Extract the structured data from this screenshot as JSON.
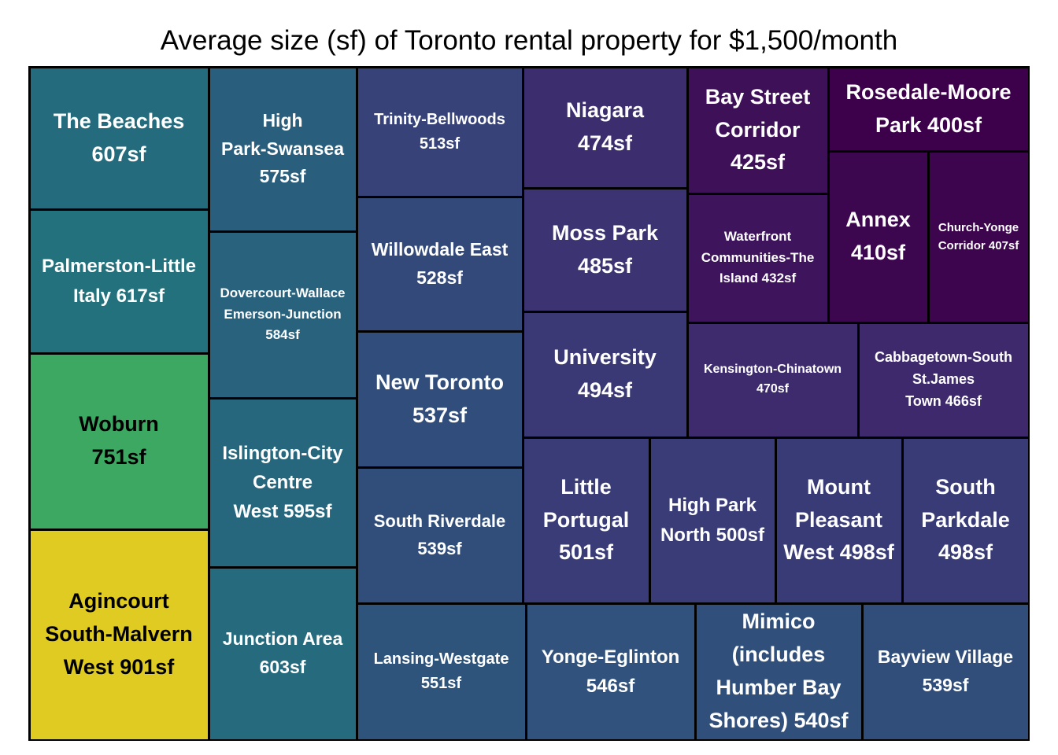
{
  "chart_data": {
    "type": "treemap",
    "title": "Average size (sf) of Toronto rental property for $1,500/month",
    "unit": "sf",
    "colormap": "viridis",
    "color_range": [
      400,
      901
    ],
    "items": [
      {
        "name": "The Beaches",
        "value": 607,
        "label_lines": [
          "The Beaches",
          "607sf"
        ]
      },
      {
        "name": "Palmerston-Little Italy",
        "value": 617,
        "label_lines": [
          "Palmerston-Little",
          "Italy 617sf"
        ]
      },
      {
        "name": "Woburn",
        "value": 751,
        "label_lines": [
          "Woburn",
          "751sf"
        ]
      },
      {
        "name": "Agincourt South-Malvern West",
        "value": 901,
        "label_lines": [
          "Agincourt",
          "South-Malvern",
          "West 901sf"
        ]
      },
      {
        "name": "High Park-Swansea",
        "value": 575,
        "label_lines": [
          "High",
          "Park-Swansea",
          "575sf"
        ]
      },
      {
        "name": "Dovercourt-Wallace Emerson-Junction",
        "value": 584,
        "label_lines": [
          "Dovercourt-Wallace",
          "Emerson-Junction",
          "584sf"
        ]
      },
      {
        "name": "Islington-City Centre West",
        "value": 595,
        "label_lines": [
          "Islington-City",
          "Centre",
          "West 595sf"
        ]
      },
      {
        "name": "Junction Area",
        "value": 603,
        "label_lines": [
          "Junction Area",
          "603sf"
        ]
      },
      {
        "name": "Trinity-Bellwoods",
        "value": 513,
        "label_lines": [
          "Trinity-Bellwoods",
          "513sf"
        ]
      },
      {
        "name": "Willowdale East",
        "value": 528,
        "label_lines": [
          "Willowdale East",
          "528sf"
        ]
      },
      {
        "name": "New Toronto",
        "value": 537,
        "label_lines": [
          "New Toronto",
          "537sf"
        ]
      },
      {
        "name": "South Riverdale",
        "value": 539,
        "label_lines": [
          "South Riverdale",
          "539sf"
        ]
      },
      {
        "name": "Lansing-Westgate",
        "value": 551,
        "label_lines": [
          "Lansing-Westgate",
          "551sf"
        ]
      },
      {
        "name": "Yonge-Eglinton",
        "value": 546,
        "label_lines": [
          "Yonge-Eglinton",
          "546sf"
        ]
      },
      {
        "name": "Mimico (includes Humber Bay Shores)",
        "value": 540,
        "label_lines": [
          "Mimico",
          "(includes",
          "Humber Bay",
          "Shores) 540sf"
        ]
      },
      {
        "name": "Bayview Village",
        "value": 539,
        "label_lines": [
          "Bayview Village",
          "539sf"
        ]
      },
      {
        "name": "Niagara",
        "value": 474,
        "label_lines": [
          "Niagara",
          "474sf"
        ]
      },
      {
        "name": "Moss Park",
        "value": 485,
        "label_lines": [
          "Moss Park",
          "485sf"
        ]
      },
      {
        "name": "University",
        "value": 494,
        "label_lines": [
          "University",
          "494sf"
        ]
      },
      {
        "name": "Little Portugal",
        "value": 501,
        "label_lines": [
          "Little",
          "Portugal",
          "501sf"
        ]
      },
      {
        "name": "High Park North",
        "value": 500,
        "label_lines": [
          "High Park",
          "North 500sf"
        ]
      },
      {
        "name": "Mount Pleasant West",
        "value": 498,
        "label_lines": [
          "Mount",
          "Pleasant",
          "West 498sf"
        ]
      },
      {
        "name": "South Parkdale",
        "value": 498,
        "label_lines": [
          "South",
          "Parkdale",
          "498sf"
        ]
      },
      {
        "name": "Bay Street Corridor",
        "value": 425,
        "label_lines": [
          "Bay Street",
          "Corridor",
          "425sf"
        ]
      },
      {
        "name": "Waterfront Communities-The Island",
        "value": 432,
        "label_lines": [
          "Waterfront",
          "Communities-The",
          "Island 432sf"
        ]
      },
      {
        "name": "Rosedale-Moore Park",
        "value": 400,
        "label_lines": [
          "Rosedale-Moore",
          "Park 400sf"
        ]
      },
      {
        "name": "Annex",
        "value": 410,
        "label_lines": [
          "Annex",
          "410sf"
        ]
      },
      {
        "name": "Church-Yonge Corridor",
        "value": 407,
        "label_lines": [
          "Church-Yonge",
          "Corridor 407sf"
        ]
      },
      {
        "name": "Kensington-Chinatown",
        "value": 470,
        "label_lines": [
          "Kensington-Chinatown",
          "470sf"
        ]
      },
      {
        "name": "Cabbagetown-South St.James Town",
        "value": 466,
        "label_lines": [
          "Cabbagetown-South",
          "St.James",
          "Town 466sf"
        ]
      }
    ]
  }
}
